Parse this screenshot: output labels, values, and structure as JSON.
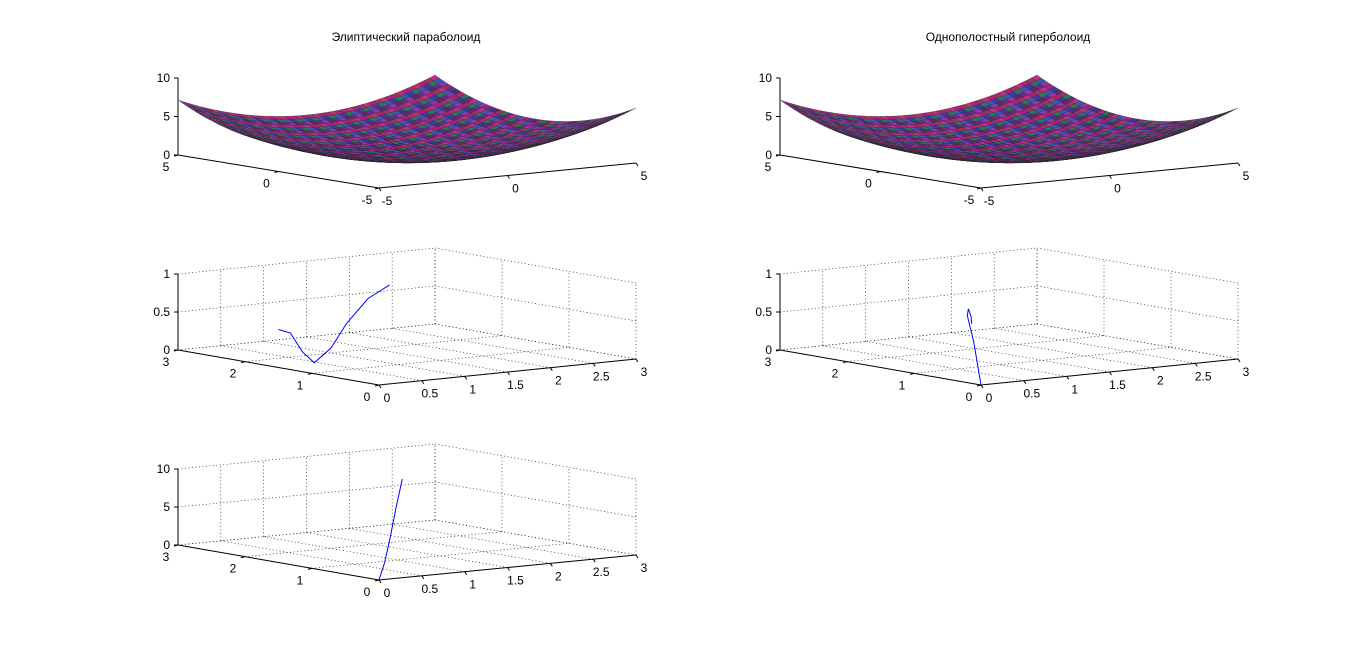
{
  "chart_data": [
    {
      "type": "surface",
      "title": "Элиптический параболоид",
      "xlim": [
        -5,
        5
      ],
      "ylim": [
        -5,
        5
      ],
      "zlim": [
        0,
        10
      ],
      "xticks": [
        "-5",
        "0",
        "5"
      ],
      "yticks": [
        "-5",
        "0",
        "5"
      ],
      "zticks": [
        "0",
        "5",
        "10"
      ],
      "grid": false,
      "function": "z = (x^2 + y^2) / 7",
      "z_at_corners": {
        "x=-5,y=5": 7.1,
        "x=5,y=5": 7.1,
        "x=-5,y=-5": 7.1,
        "x=5,y=-5": 7.1
      },
      "z_min": 0
    },
    {
      "type": "surface",
      "title": "Однополостный гиперболоид",
      "xlim": [
        -5,
        5
      ],
      "ylim": [
        -5,
        5
      ],
      "zlim": [
        0,
        10
      ],
      "xticks": [
        "-5",
        "0",
        "5"
      ],
      "yticks": [
        "-5",
        "0",
        "5"
      ],
      "zticks": [
        "0",
        "5",
        "10"
      ],
      "grid": false,
      "function": "z = (x^2 + y^2) / 7",
      "z_min": 0
    },
    {
      "type": "line3d",
      "title": "",
      "xlim": [
        0,
        3
      ],
      "ylim": [
        0,
        3
      ],
      "zlim": [
        0,
        1
      ],
      "xticks": [
        "0",
        "0.5",
        "1",
        "1.5",
        "2",
        "2.5",
        "3"
      ],
      "yticks": [
        "0",
        "1",
        "2",
        "3"
      ],
      "zticks": [
        "0",
        "0.5",
        "1"
      ],
      "grid": true,
      "series": [
        {
          "color": "#0000ff",
          "points": [
            [
              0,
              1.5,
              0.5
            ],
            [
              0.1,
              1.45,
              0.45
            ],
            [
              0.2,
              1.4,
              0.2
            ],
            [
              0.3,
              1.35,
              0.05
            ],
            [
              0.42,
              1.25,
              0.25
            ],
            [
              0.6,
              1.25,
              0.55
            ],
            [
              0.85,
              1.25,
              0.85
            ],
            [
              1.1,
              1.25,
              1.0
            ]
          ]
        }
      ]
    },
    {
      "type": "line3d",
      "title": "",
      "xlim": [
        0,
        3
      ],
      "ylim": [
        0,
        3
      ],
      "zlim": [
        0,
        1
      ],
      "xticks": [
        "0",
        "0.5",
        "1",
        "1.5",
        "2",
        "2.5",
        "3"
      ],
      "yticks": [
        "0",
        "1",
        "2",
        "3"
      ],
      "zticks": [
        "0",
        "0.5",
        "1"
      ],
      "grid": true,
      "series": [
        {
          "color": "#0000ff",
          "points": [
            [
              0,
              0,
              0
            ],
            [
              0.15,
              0.3,
              0.5
            ],
            [
              0.27,
              0.55,
              0.8
            ],
            [
              0.4,
              0.7,
              0.85
            ],
            [
              0.55,
              0.85,
              0.7
            ],
            [
              0.75,
              1.1,
              0.55
            ]
          ]
        }
      ]
    },
    {
      "type": "line3d",
      "title": "",
      "xlim": [
        0,
        3
      ],
      "ylim": [
        0,
        3
      ],
      "zlim": [
        0,
        10
      ],
      "xticks": [
        "0",
        "0.5",
        "1",
        "1.5",
        "2",
        "2.5",
        "3"
      ],
      "yticks": [
        "0",
        "1",
        "2",
        "3"
      ],
      "zticks": [
        "0",
        "5",
        "10"
      ],
      "grid": true,
      "series": [
        {
          "color": "#0000ff",
          "points": [
            [
              0,
              0,
              0
            ],
            [
              0.3,
              0.3,
              1.5
            ],
            [
              0.6,
              0.6,
              4
            ],
            [
              0.9,
              0.9,
              7
            ],
            [
              1.25,
              1.25,
              10
            ]
          ]
        }
      ]
    }
  ]
}
